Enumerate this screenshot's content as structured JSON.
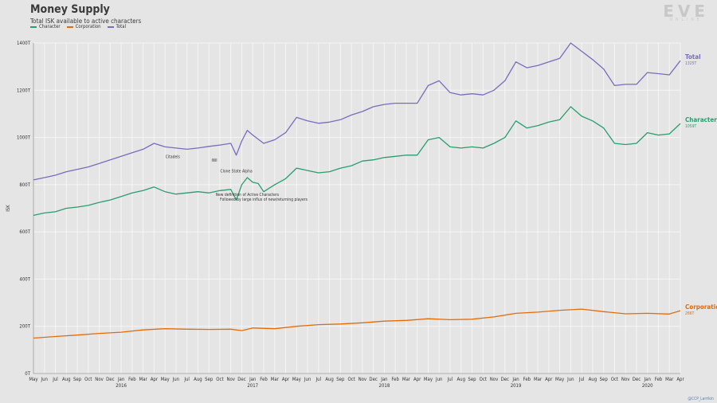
{
  "header": {
    "title": "Money Supply",
    "subtitle": "Total ISK available to active characters"
  },
  "logo": {
    "main": "EVE",
    "sub": "ONLINE"
  },
  "credit": "@CCP_Larrikin",
  "colors": {
    "character": "#2a9d6f",
    "corporation": "#e36c0a",
    "total": "#7a6bbf",
    "grid": "#f5f5f5",
    "background": "#e5e5e5"
  },
  "chart_data": {
    "type": "line",
    "ylabel": "ISK",
    "y_ticks": [
      "0T",
      "200T",
      "400T",
      "600T",
      "800T",
      "1000T",
      "1200T",
      "1400T"
    ],
    "ylim": [
      0,
      1400
    ],
    "x_months": [
      "May",
      "Jun",
      "Jul",
      "Aug",
      "Sep",
      "Oct",
      "Nov",
      "Dec",
      "Jan",
      "Feb",
      "Mar",
      "Apr",
      "May",
      "Jun",
      "Jul",
      "Aug",
      "Sep",
      "Oct",
      "Nov",
      "Dec",
      "Jan",
      "Feb",
      "Mar",
      "Apr",
      "May",
      "Jun",
      "Jul",
      "Aug",
      "Sep",
      "Oct",
      "Nov",
      "Dec",
      "Jan",
      "Feb",
      "Mar",
      "Apr",
      "May",
      "Jun",
      "Jul",
      "Aug",
      "Sep",
      "Oct",
      "Nov",
      "Dec",
      "Jan",
      "Feb",
      "Mar",
      "Apr",
      "May",
      "Jun",
      "Jul",
      "Aug",
      "Sep",
      "Oct",
      "Nov",
      "Dec",
      "Jan",
      "Feb",
      "Mar",
      "Apr"
    ],
    "years": [
      {
        "label": "2016",
        "month_index": 8
      },
      {
        "label": "2017",
        "month_index": 20
      },
      {
        "label": "2018",
        "month_index": 32
      },
      {
        "label": "2019",
        "month_index": 44
      },
      {
        "label": "2020",
        "month_index": 56
      }
    ],
    "grid": true,
    "series": [
      {
        "name": "Character",
        "end_label": "1059T",
        "points": [
          [
            0,
            670
          ],
          [
            1,
            680
          ],
          [
            2,
            685
          ],
          [
            3,
            700
          ],
          [
            4,
            705
          ],
          [
            5,
            712
          ],
          [
            6,
            725
          ],
          [
            7,
            735
          ],
          [
            8,
            750
          ],
          [
            9,
            765
          ],
          [
            10,
            775
          ],
          [
            11,
            790
          ],
          [
            12,
            770
          ],
          [
            13,
            760
          ],
          [
            14,
            765
          ],
          [
            15,
            770
          ],
          [
            16,
            765
          ],
          [
            17,
            775
          ],
          [
            18,
            780
          ],
          [
            18.5,
            735
          ],
          [
            19,
            800
          ],
          [
            19.5,
            830
          ],
          [
            20,
            810
          ],
          [
            20.5,
            805
          ],
          [
            21,
            770
          ],
          [
            22,
            800
          ],
          [
            23,
            825
          ],
          [
            24,
            870
          ],
          [
            25,
            860
          ],
          [
            26,
            850
          ],
          [
            27,
            855
          ],
          [
            28,
            870
          ],
          [
            29,
            880
          ],
          [
            30,
            900
          ],
          [
            31,
            905
          ],
          [
            32,
            915
          ],
          [
            33,
            920
          ],
          [
            34,
            925
          ],
          [
            35,
            925
          ],
          [
            36,
            990
          ],
          [
            37,
            1000
          ],
          [
            38,
            960
          ],
          [
            39,
            955
          ],
          [
            40,
            960
          ],
          [
            41,
            955
          ],
          [
            42,
            975
          ],
          [
            43,
            1000
          ],
          [
            44,
            1070
          ],
          [
            45,
            1040
          ],
          [
            46,
            1050
          ],
          [
            47,
            1065
          ],
          [
            48,
            1075
          ],
          [
            49,
            1130
          ],
          [
            50,
            1090
          ],
          [
            51,
            1070
          ],
          [
            52,
            1040
          ],
          [
            53,
            975
          ],
          [
            54,
            970
          ],
          [
            55,
            975
          ],
          [
            56,
            1020
          ],
          [
            57,
            1010
          ],
          [
            58,
            1015
          ],
          [
            59,
            1059
          ]
        ]
      },
      {
        "name": "Corporation",
        "end_label": "266T",
        "points": [
          [
            0,
            150
          ],
          [
            2,
            157
          ],
          [
            4,
            163
          ],
          [
            6,
            170
          ],
          [
            8,
            175
          ],
          [
            10,
            185
          ],
          [
            12,
            190
          ],
          [
            14,
            188
          ],
          [
            16,
            187
          ],
          [
            18,
            188
          ],
          [
            19,
            182
          ],
          [
            20,
            193
          ],
          [
            22,
            190
          ],
          [
            24,
            200
          ],
          [
            26,
            207
          ],
          [
            28,
            210
          ],
          [
            30,
            215
          ],
          [
            32,
            222
          ],
          [
            34,
            225
          ],
          [
            36,
            232
          ],
          [
            38,
            228
          ],
          [
            40,
            230
          ],
          [
            42,
            240
          ],
          [
            44,
            255
          ],
          [
            46,
            260
          ],
          [
            48,
            268
          ],
          [
            50,
            273
          ],
          [
            52,
            262
          ],
          [
            54,
            253
          ],
          [
            56,
            255
          ],
          [
            58,
            252
          ],
          [
            59,
            266
          ]
        ]
      },
      {
        "name": "Total",
        "end_label": "1325T",
        "points": [
          [
            0,
            820
          ],
          [
            1,
            830
          ],
          [
            2,
            840
          ],
          [
            3,
            855
          ],
          [
            4,
            865
          ],
          [
            5,
            875
          ],
          [
            6,
            890
          ],
          [
            7,
            905
          ],
          [
            8,
            920
          ],
          [
            9,
            935
          ],
          [
            10,
            950
          ],
          [
            11,
            975
          ],
          [
            12,
            960
          ],
          [
            13,
            955
          ],
          [
            14,
            950
          ],
          [
            15,
            955
          ],
          [
            16,
            962
          ],
          [
            17,
            968
          ],
          [
            18,
            975
          ],
          [
            18.5,
            925
          ],
          [
            19,
            985
          ],
          [
            19.5,
            1030
          ],
          [
            20,
            1010
          ],
          [
            21,
            975
          ],
          [
            22,
            990
          ],
          [
            23,
            1020
          ],
          [
            24,
            1085
          ],
          [
            25,
            1070
          ],
          [
            26,
            1060
          ],
          [
            27,
            1065
          ],
          [
            28,
            1075
          ],
          [
            29,
            1095
          ],
          [
            30,
            1110
          ],
          [
            31,
            1130
          ],
          [
            32,
            1140
          ],
          [
            33,
            1145
          ],
          [
            34,
            1145
          ],
          [
            35,
            1145
          ],
          [
            36,
            1220
          ],
          [
            37,
            1240
          ],
          [
            38,
            1190
          ],
          [
            39,
            1180
          ],
          [
            40,
            1185
          ],
          [
            41,
            1180
          ],
          [
            42,
            1200
          ],
          [
            43,
            1240
          ],
          [
            44,
            1320
          ],
          [
            45,
            1295
          ],
          [
            46,
            1305
          ],
          [
            47,
            1320
          ],
          [
            48,
            1335
          ],
          [
            49,
            1400
          ],
          [
            50,
            1365
          ],
          [
            51,
            1330
          ],
          [
            52,
            1290
          ],
          [
            53,
            1220
          ],
          [
            54,
            1225
          ],
          [
            55,
            1225
          ],
          [
            56,
            1275
          ],
          [
            57,
            1270
          ],
          [
            58,
            1265
          ],
          [
            59,
            1325
          ]
        ]
      }
    ],
    "annotations": [
      {
        "label": "Citadels",
        "x": 12.7,
        "y": 980
      },
      {
        "label": "IWI",
        "x": 16.5,
        "y": 965
      },
      {
        "label": "Clone State Alpha",
        "x": 18.5,
        "y": 920
      },
      {
        "label": "New definition of Active Characters",
        "x": 19.5,
        "y": 820
      },
      {
        "label": "Followed by large influx of new/returning players",
        "x": 21,
        "y": 800
      }
    ]
  }
}
